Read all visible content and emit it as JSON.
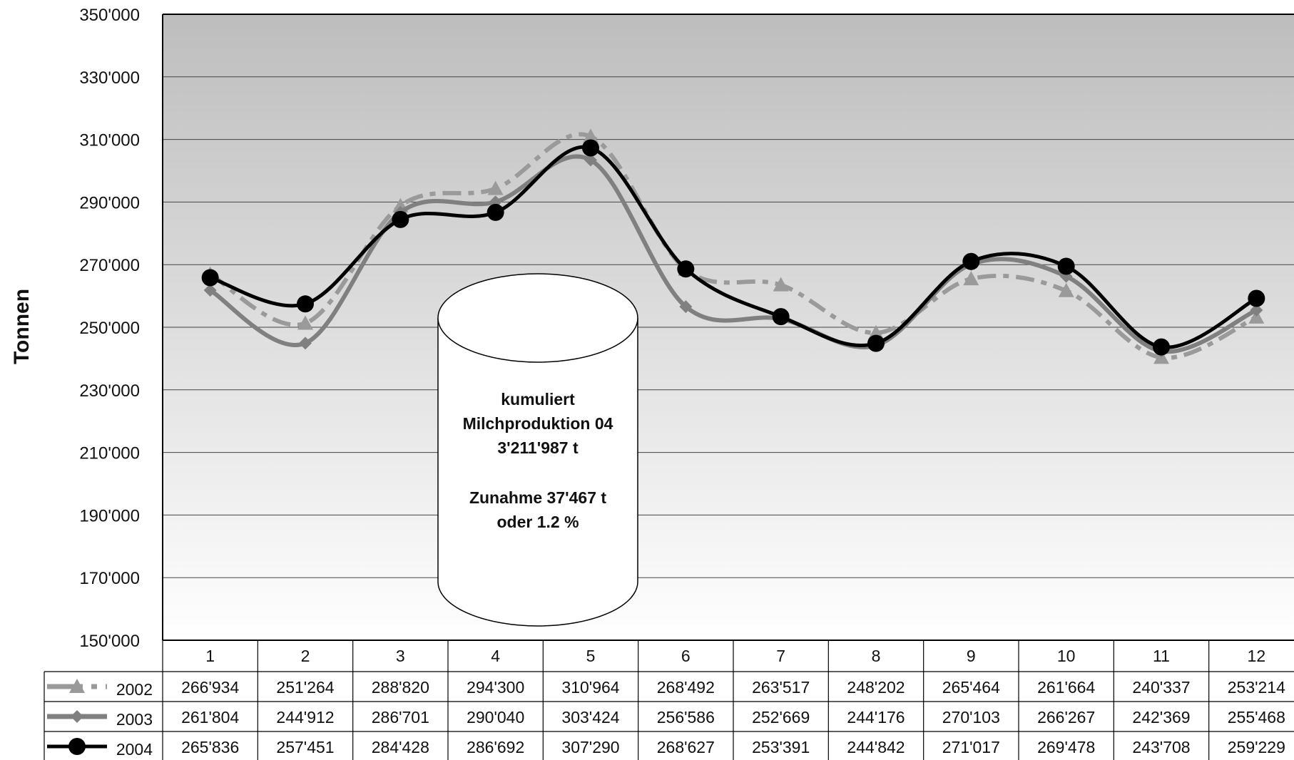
{
  "chart_data": {
    "type": "line",
    "title": "",
    "xlabel": "",
    "ylabel": "Tonnen",
    "ylim": [
      150000,
      350000
    ],
    "yticks": [
      150000,
      170000,
      190000,
      210000,
      230000,
      250000,
      270000,
      290000,
      310000,
      330000,
      350000
    ],
    "ytick_labels": [
      "150'000",
      "170'000",
      "190'000",
      "210'000",
      "230'000",
      "250'000",
      "270'000",
      "290'000",
      "310'000",
      "330'000",
      "350'000"
    ],
    "categories": [
      "1",
      "2",
      "3",
      "4",
      "5",
      "6",
      "7",
      "8",
      "9",
      "10",
      "11",
      "12"
    ],
    "grid": true,
    "legend": "data-table-rows",
    "series": [
      {
        "name": "2002",
        "color": "#9a9a9a",
        "style": "dashed",
        "marker": "triangle",
        "values": [
          266934,
          251264,
          288820,
          294300,
          310964,
          268492,
          263517,
          248202,
          265464,
          261664,
          240337,
          253214
        ],
        "labels": [
          "266'934",
          "251'264",
          "288'820",
          "294'300",
          "310'964",
          "268'492",
          "263'517",
          "248'202",
          "265'464",
          "261'664",
          "240'337",
          "253'214"
        ]
      },
      {
        "name": "2003",
        "color": "#808080",
        "style": "solid",
        "marker": "diamond",
        "values": [
          261804,
          244912,
          286701,
          290040,
          303424,
          256586,
          252669,
          244176,
          270103,
          266267,
          242369,
          255468
        ],
        "labels": [
          "261'804",
          "244'912",
          "286'701",
          "290'040",
          "303'424",
          "256'586",
          "252'669",
          "244'176",
          "270'103",
          "266'267",
          "242'369",
          "255'468"
        ]
      },
      {
        "name": "2004",
        "color": "#000000",
        "style": "solid",
        "marker": "circle",
        "values": [
          265836,
          257451,
          284428,
          286692,
          307290,
          268627,
          253391,
          244842,
          271017,
          269478,
          243708,
          259229
        ],
        "labels": [
          "265'836",
          "257'451",
          "284'428",
          "286'692",
          "307'290",
          "268'627",
          "253'391",
          "244'842",
          "271'017",
          "269'478",
          "243'708",
          "259'229"
        ]
      }
    ],
    "annotation": {
      "lines": [
        "kumuliert",
        "Milchproduktion 04",
        "3'211'987 t",
        "",
        "Zunahme  37'467 t",
        "oder  1.2 %"
      ]
    }
  }
}
